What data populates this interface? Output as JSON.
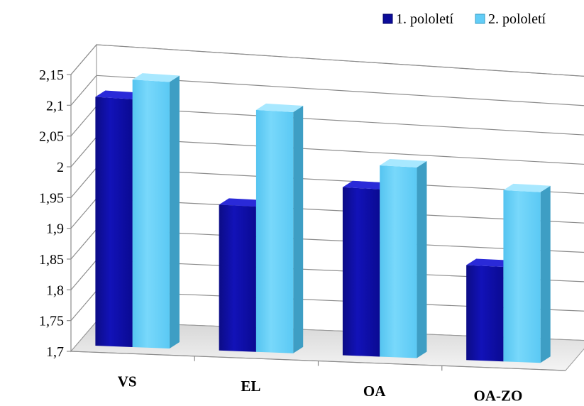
{
  "chart_data": {
    "type": "bar",
    "categories": [
      "VS",
      "EL",
      "OA",
      "OA-ZO"
    ],
    "series": [
      {
        "name": "1. pololetí",
        "values": [
          2.105,
          1.94,
          1.98,
          1.86
        ]
      },
      {
        "name": "2. pololetí",
        "values": [
          2.137,
          2.1,
          2.02,
          1.99
        ]
      }
    ],
    "ylim": [
      1.7,
      2.15
    ],
    "yticks": [
      "1,7",
      "1,75",
      "1,8",
      "1,85",
      "1,9",
      "1,95",
      "2",
      "2,05",
      "2,1",
      "2,15"
    ],
    "grid": true,
    "legend_position": "top-right",
    "three_d": true,
    "colors": [
      "#0a0a9e",
      "#62cdf7"
    ]
  }
}
